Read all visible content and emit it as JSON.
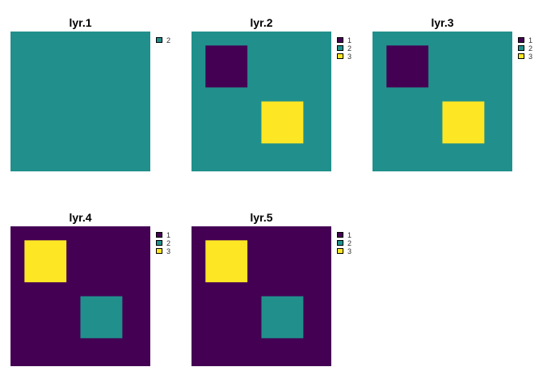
{
  "chart_data": {
    "type": "heatmap",
    "colors": {
      "1": "#440154",
      "2": "#21908C",
      "3": "#FDE725"
    },
    "grid_size": [
      10,
      10
    ],
    "panels": [
      {
        "title": "lyr.1",
        "background": 2,
        "patches": [],
        "legend": [
          "2"
        ]
      },
      {
        "title": "lyr.2",
        "background": 2,
        "patches": [
          {
            "value": 1,
            "rows": [
              2,
              4
            ],
            "cols": [
              2,
              4
            ]
          },
          {
            "value": 3,
            "rows": [
              6,
              8
            ],
            "cols": [
              6,
              8
            ]
          }
        ],
        "legend": [
          "1",
          "2",
          "3"
        ]
      },
      {
        "title": "lyr.3",
        "background": 2,
        "patches": [
          {
            "value": 1,
            "rows": [
              2,
              4
            ],
            "cols": [
              2,
              4
            ]
          },
          {
            "value": 3,
            "rows": [
              6,
              8
            ],
            "cols": [
              6,
              8
            ]
          }
        ],
        "legend": [
          "1",
          "2",
          "3"
        ]
      },
      {
        "title": "lyr.4",
        "background": 1,
        "patches": [
          {
            "value": 3,
            "rows": [
              2,
              4
            ],
            "cols": [
              2,
              4
            ]
          },
          {
            "value": 2,
            "rows": [
              6,
              8
            ],
            "cols": [
              6,
              8
            ]
          }
        ],
        "legend": [
          "1",
          "2",
          "3"
        ]
      },
      {
        "title": "lyr.5",
        "background": 1,
        "patches": [
          {
            "value": 3,
            "rows": [
              2,
              4
            ],
            "cols": [
              2,
              4
            ]
          },
          {
            "value": 2,
            "rows": [
              6,
              8
            ],
            "cols": [
              6,
              8
            ]
          }
        ],
        "legend": [
          "1",
          "2",
          "3"
        ]
      }
    ]
  }
}
